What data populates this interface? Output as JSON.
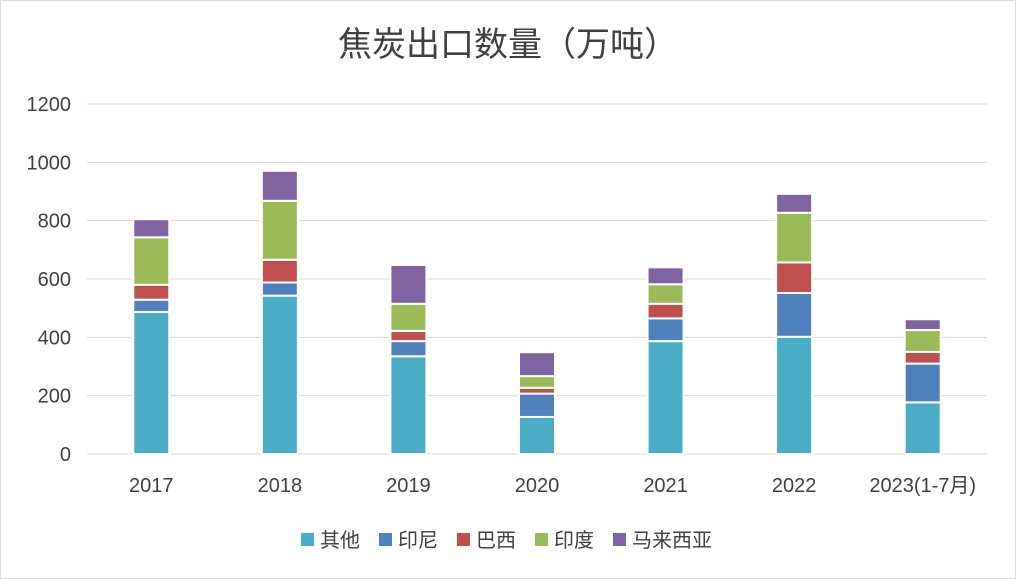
{
  "chart_data": {
    "type": "bar",
    "stacked": true,
    "title": "焦炭出口数量（万吨）",
    "categories": [
      "2017",
      "2018",
      "2019",
      "2020",
      "2021",
      "2022",
      "2023(1-7月)"
    ],
    "series": [
      {
        "name": "其他",
        "color": "#4BACC6",
        "values": [
          487,
          543,
          335,
          127,
          387,
          402,
          177
        ]
      },
      {
        "name": "印尼",
        "color": "#4F81BD",
        "values": [
          42,
          45,
          52,
          80,
          78,
          150,
          133
        ]
      },
      {
        "name": "巴西",
        "color": "#C0504D",
        "values": [
          51,
          78,
          35,
          20,
          50,
          105,
          40
        ]
      },
      {
        "name": "印度",
        "color": "#9BBB59",
        "values": [
          163,
          202,
          93,
          40,
          67,
          170,
          75
        ]
      },
      {
        "name": "马来西亚",
        "color": "#8064A2",
        "values": [
          62,
          103,
          133,
          82,
          58,
          65,
          37
        ]
      }
    ],
    "ylim": [
      0,
      1200
    ],
    "yticks": [
      0,
      200,
      400,
      600,
      800,
      1000,
      1200
    ],
    "grid": true,
    "legend_position": "bottom"
  }
}
